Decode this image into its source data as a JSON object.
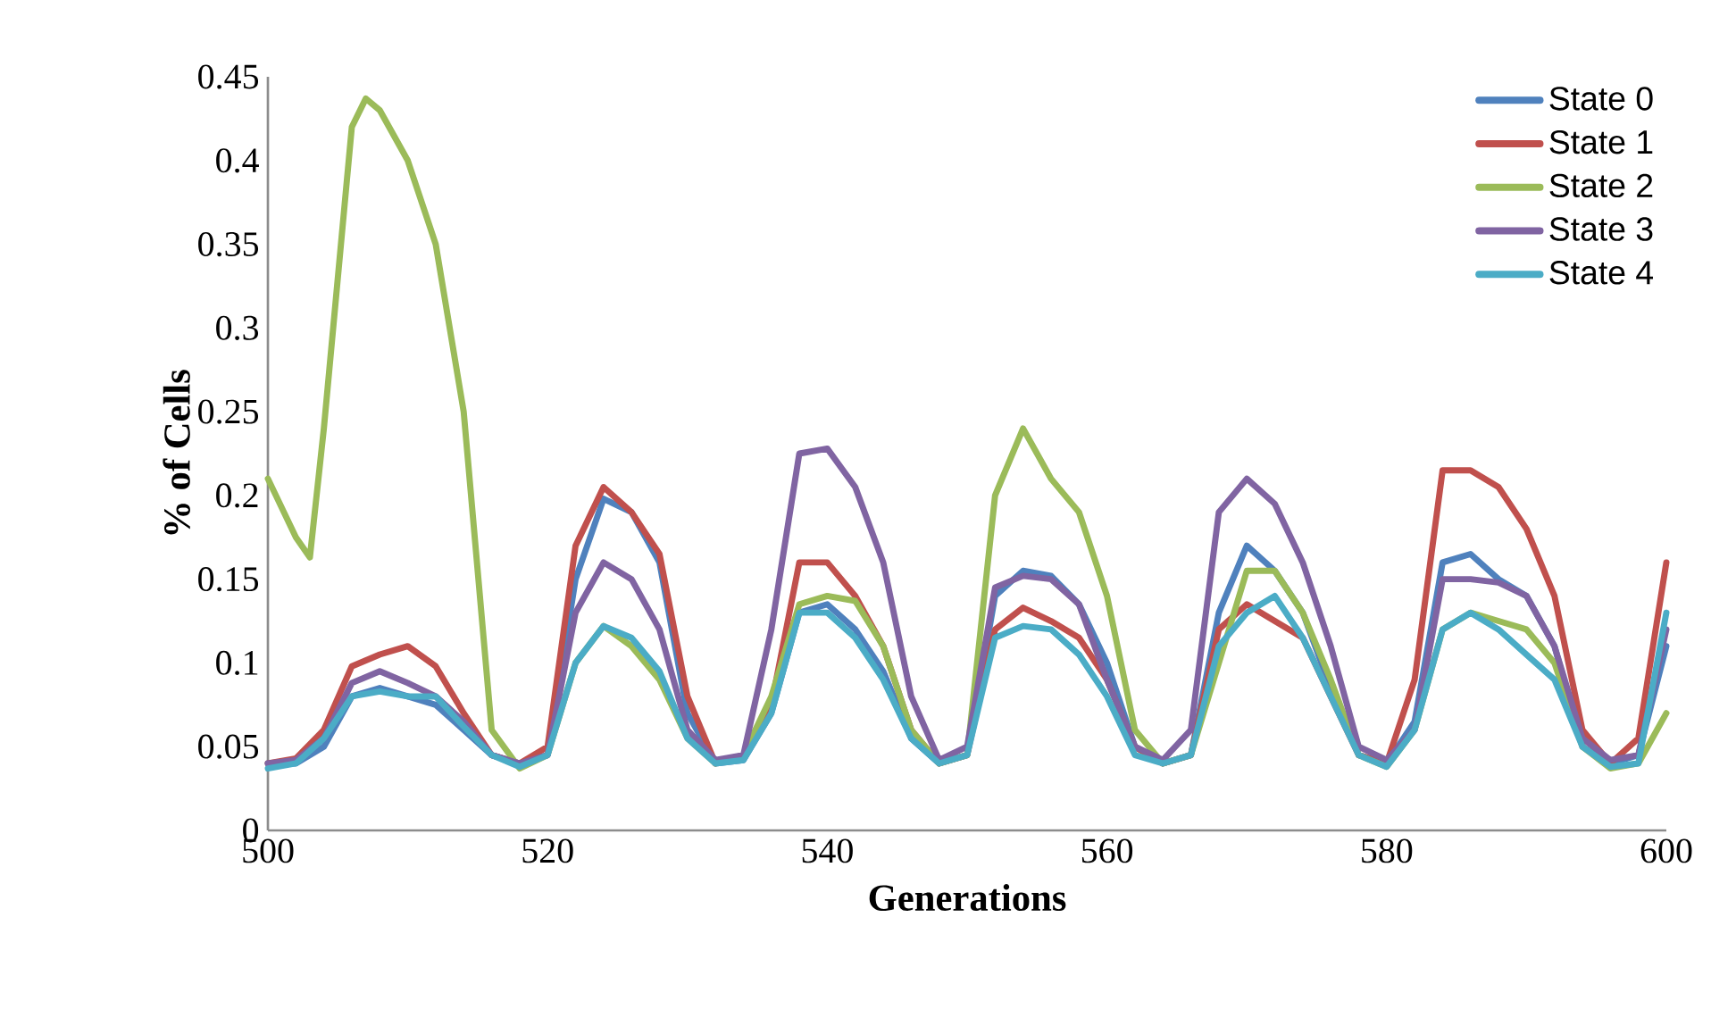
{
  "chart_data": {
    "type": "line",
    "xlabel": "Generations",
    "ylabel": "% of Cells",
    "x": [
      500,
      502,
      504,
      506,
      508,
      510,
      512,
      514,
      516,
      518,
      520,
      522,
      524,
      526,
      528,
      530,
      532,
      534,
      536,
      538,
      540,
      542,
      544,
      546,
      548,
      550,
      552,
      554,
      556,
      558,
      560,
      562,
      564,
      566,
      568,
      570,
      572,
      574,
      576,
      578,
      580,
      582,
      584,
      586,
      588,
      590,
      592,
      594,
      596,
      598,
      600
    ],
    "series": [
      {
        "name": "State 0",
        "color": "#4f81bd",
        "values": [
          0.04,
          0.04,
          0.05,
          0.08,
          0.085,
          0.08,
          0.075,
          0.06,
          0.045,
          0.04,
          0.045,
          0.15,
          0.198,
          0.19,
          0.16,
          0.07,
          0.04,
          0.042,
          0.07,
          0.13,
          0.135,
          0.12,
          0.095,
          0.055,
          0.04,
          0.045,
          0.14,
          0.155,
          0.152,
          0.135,
          0.1,
          0.05,
          0.04,
          0.045,
          0.13,
          0.17,
          0.155,
          0.13,
          0.085,
          0.045,
          0.04,
          0.065,
          0.16,
          0.165,
          0.15,
          0.14,
          0.11,
          0.05,
          0.04,
          0.045,
          0.11
        ]
      },
      {
        "name": "State 1",
        "color": "#c0504d",
        "values": [
          0.04,
          0.043,
          0.06,
          0.098,
          0.105,
          0.11,
          0.098,
          0.07,
          0.045,
          0.04,
          0.05,
          0.17,
          0.205,
          0.19,
          0.165,
          0.08,
          0.04,
          0.045,
          0.075,
          0.16,
          0.16,
          0.14,
          0.11,
          0.06,
          0.04,
          0.045,
          0.12,
          0.133,
          0.125,
          0.115,
          0.09,
          0.05,
          0.04,
          0.045,
          0.12,
          0.135,
          0.125,
          0.115,
          0.08,
          0.045,
          0.04,
          0.09,
          0.215,
          0.215,
          0.205,
          0.18,
          0.14,
          0.06,
          0.04,
          0.055,
          0.16
        ]
      },
      {
        "name": "State 2",
        "color": "#9bbb59",
        "x": [
          500,
          502,
          503,
          504,
          506,
          507,
          508,
          510,
          512,
          514,
          516,
          518,
          520,
          522,
          524,
          526,
          528,
          530,
          532,
          534,
          536,
          538,
          540,
          542,
          544,
          546,
          548,
          550,
          552,
          554,
          556,
          558,
          560,
          562,
          564,
          566,
          568,
          570,
          572,
          574,
          576,
          578,
          580,
          582,
          584,
          586,
          588,
          590,
          592,
          594,
          596,
          598,
          600
        ],
        "values": [
          0.21,
          0.175,
          0.163,
          0.24,
          0.42,
          0.437,
          0.43,
          0.4,
          0.35,
          0.25,
          0.06,
          0.037,
          0.045,
          0.1,
          0.122,
          0.11,
          0.09,
          0.055,
          0.04,
          0.045,
          0.08,
          0.135,
          0.14,
          0.137,
          0.11,
          0.06,
          0.04,
          0.045,
          0.2,
          0.24,
          0.21,
          0.19,
          0.14,
          0.06,
          0.04,
          0.045,
          0.1,
          0.155,
          0.155,
          0.13,
          0.09,
          0.045,
          0.038,
          0.06,
          0.12,
          0.13,
          0.125,
          0.12,
          0.1,
          0.05,
          0.037,
          0.04,
          0.07
        ]
      },
      {
        "name": "State 3",
        "color": "#8064a2",
        "values": [
          0.04,
          0.042,
          0.055,
          0.088,
          0.095,
          0.088,
          0.08,
          0.065,
          0.045,
          0.04,
          0.045,
          0.13,
          0.16,
          0.15,
          0.12,
          0.06,
          0.042,
          0.045,
          0.12,
          0.225,
          0.228,
          0.205,
          0.16,
          0.08,
          0.042,
          0.05,
          0.145,
          0.152,
          0.15,
          0.135,
          0.09,
          0.05,
          0.042,
          0.06,
          0.19,
          0.21,
          0.195,
          0.16,
          0.11,
          0.05,
          0.042,
          0.06,
          0.15,
          0.15,
          0.148,
          0.14,
          0.11,
          0.055,
          0.042,
          0.045,
          0.12
        ]
      },
      {
        "name": "State 4",
        "color": "#4bacc6",
        "values": [
          0.037,
          0.04,
          0.055,
          0.08,
          0.083,
          0.08,
          0.08,
          0.062,
          0.045,
          0.038,
          0.045,
          0.1,
          0.122,
          0.115,
          0.095,
          0.055,
          0.04,
          0.042,
          0.07,
          0.13,
          0.13,
          0.115,
          0.09,
          0.055,
          0.04,
          0.045,
          0.115,
          0.122,
          0.12,
          0.105,
          0.08,
          0.045,
          0.04,
          0.045,
          0.11,
          0.13,
          0.14,
          0.115,
          0.08,
          0.045,
          0.038,
          0.06,
          0.12,
          0.13,
          0.12,
          0.105,
          0.09,
          0.05,
          0.038,
          0.04,
          0.13
        ]
      }
    ],
    "xlim": [
      500,
      600
    ],
    "xticks": [
      500,
      520,
      540,
      560,
      580,
      600
    ],
    "ylim": [
      0,
      0.45
    ],
    "yticks": [
      0,
      0.05,
      0.1,
      0.15,
      0.2,
      0.25,
      0.3,
      0.35,
      0.4,
      0.45
    ],
    "grid": false,
    "legend": "top right",
    "marker": "none",
    "line_style": "solid"
  }
}
